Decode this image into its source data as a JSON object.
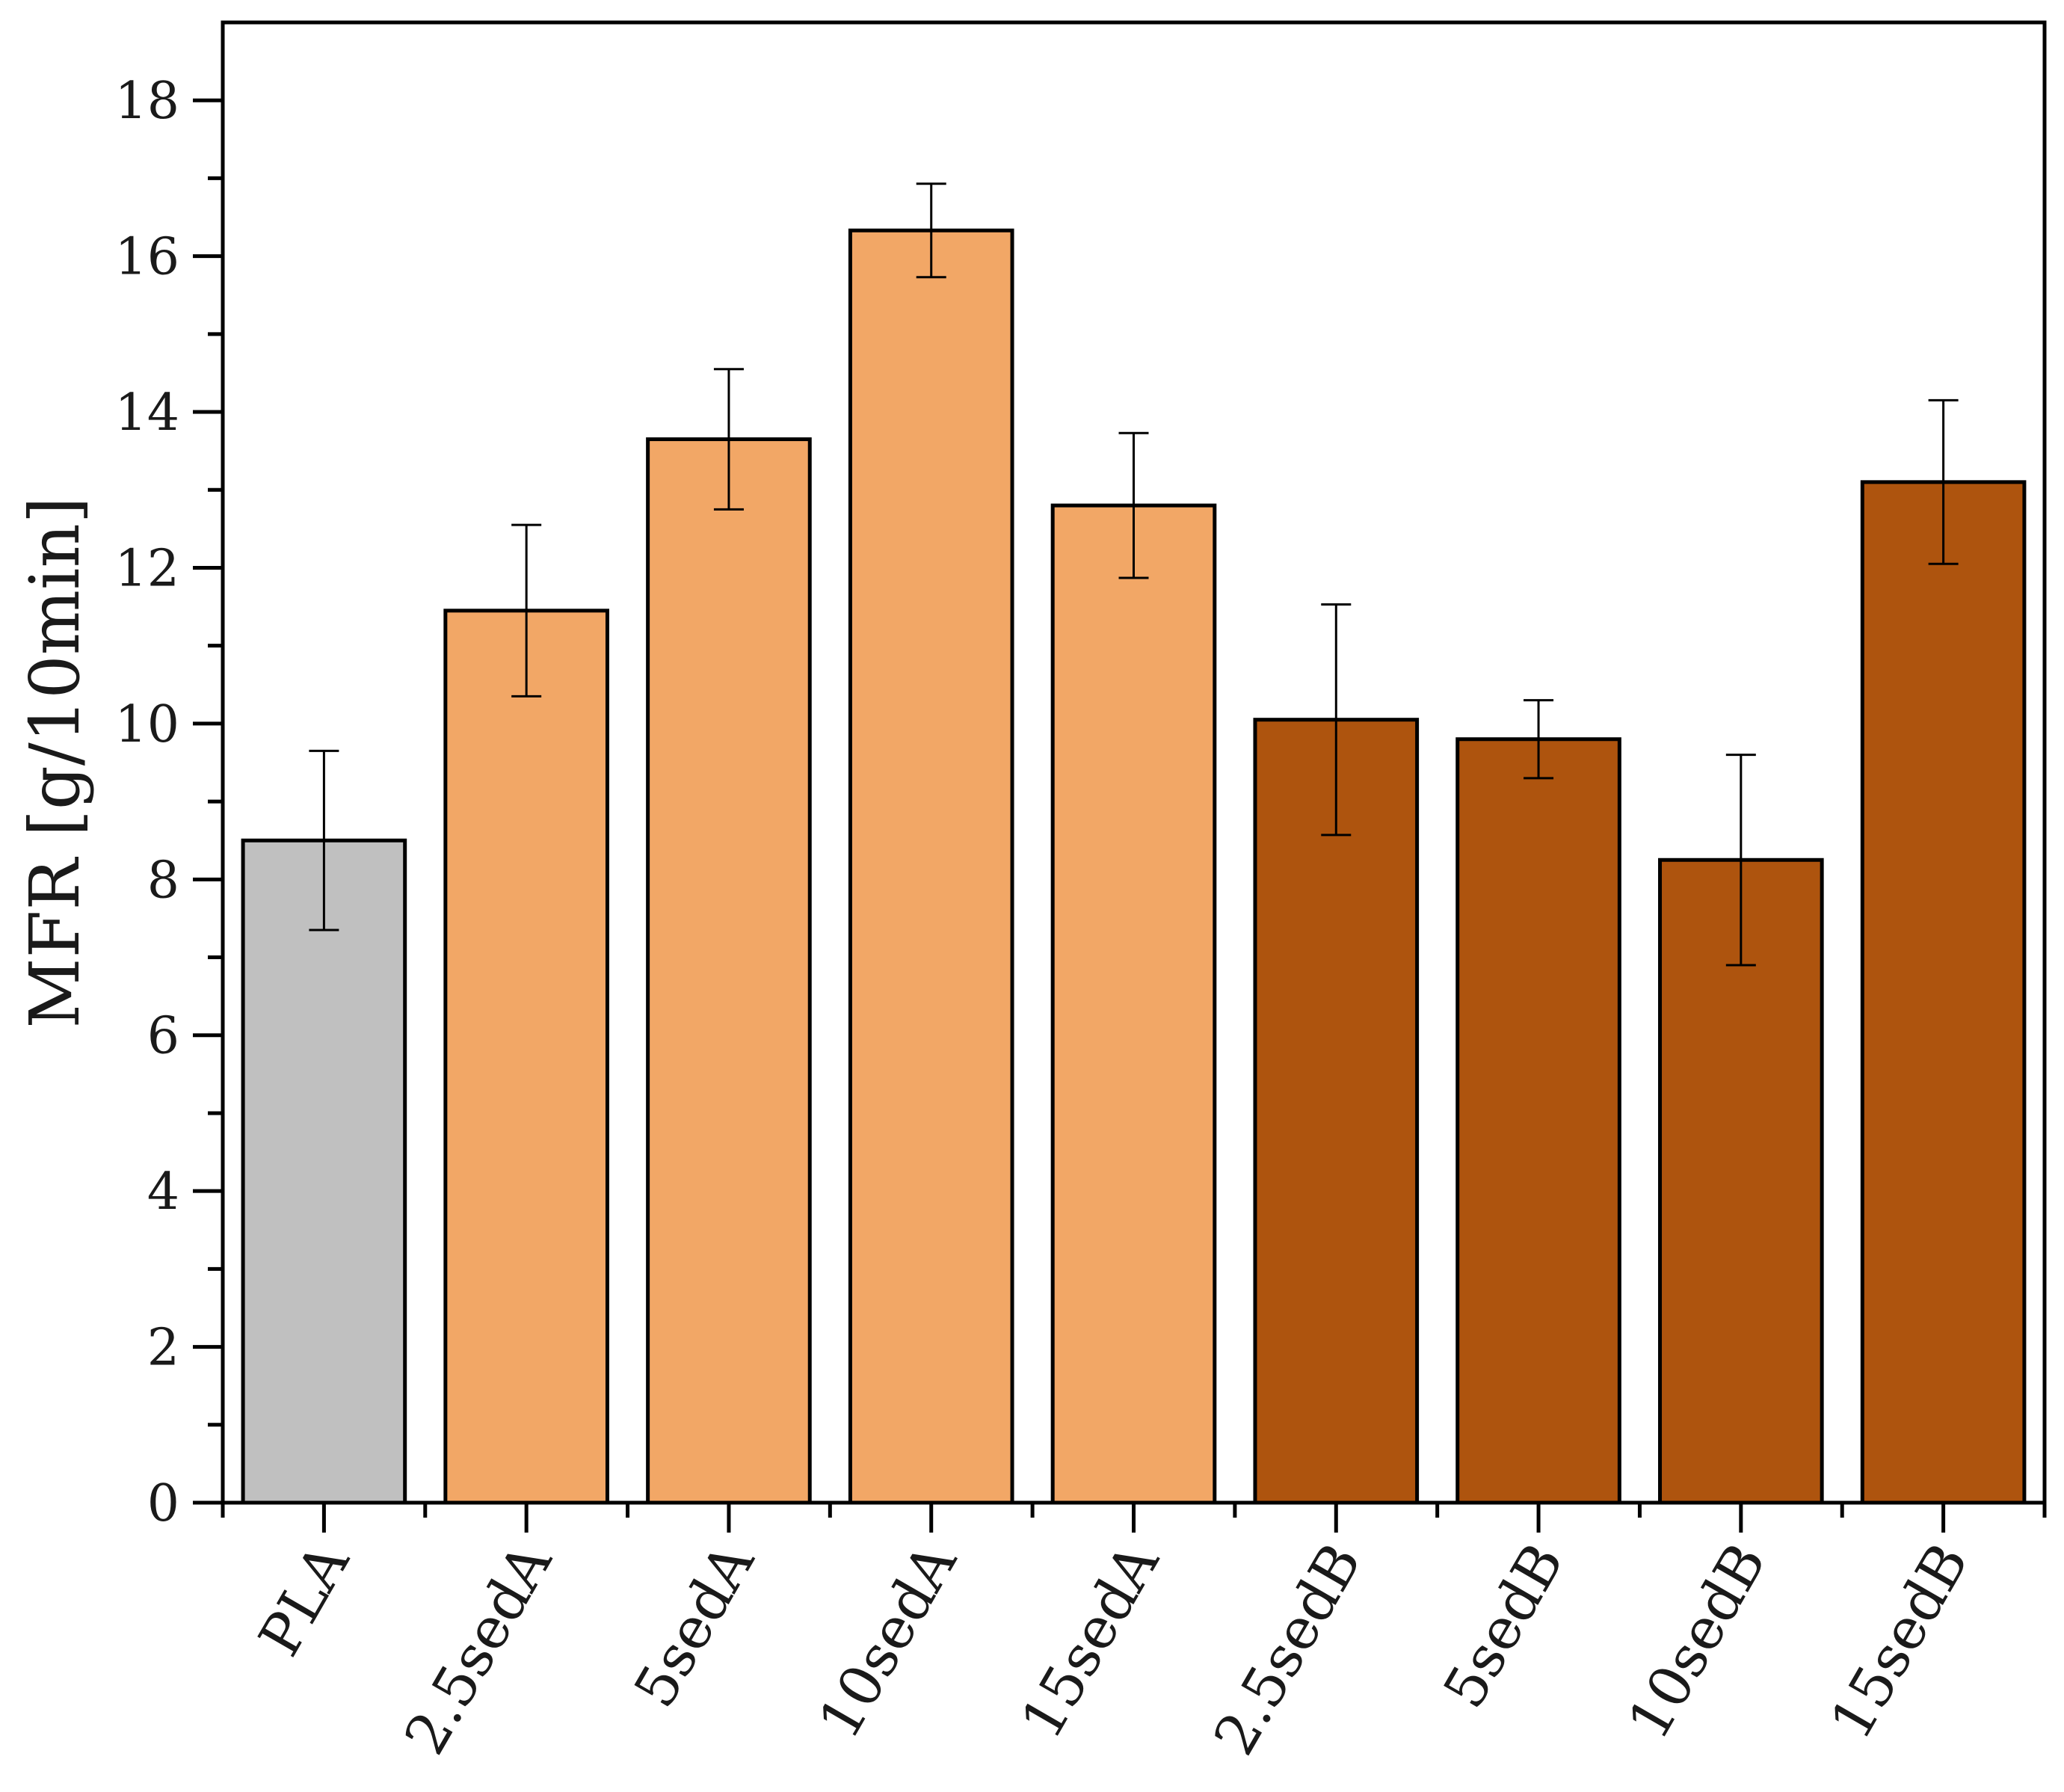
{
  "chart_data": {
    "type": "bar",
    "title": "",
    "xlabel": "",
    "ylabel": "MFR [g/10min]",
    "ylim": [
      0,
      19
    ],
    "yticks": [
      0,
      2,
      4,
      6,
      8,
      10,
      12,
      14,
      16,
      18
    ],
    "grid": false,
    "categories": [
      "PLA",
      "2.5sedA",
      "5sedA",
      "10sedA",
      "15sedA",
      "2.5sedB",
      "5sedB",
      "10sedB",
      "15sedB"
    ],
    "values": [
      8.5,
      11.45,
      13.65,
      16.33,
      12.8,
      10.05,
      9.8,
      8.25,
      13.1
    ],
    "errors": [
      1.15,
      1.1,
      0.9,
      0.6,
      0.93,
      1.48,
      0.5,
      1.35,
      1.05
    ],
    "colors": [
      "#c0c0c0",
      "#f2a766",
      "#f2a766",
      "#f2a766",
      "#f2a766",
      "#ae540e",
      "#ae540e",
      "#ae540e",
      "#ae540e"
    ]
  }
}
